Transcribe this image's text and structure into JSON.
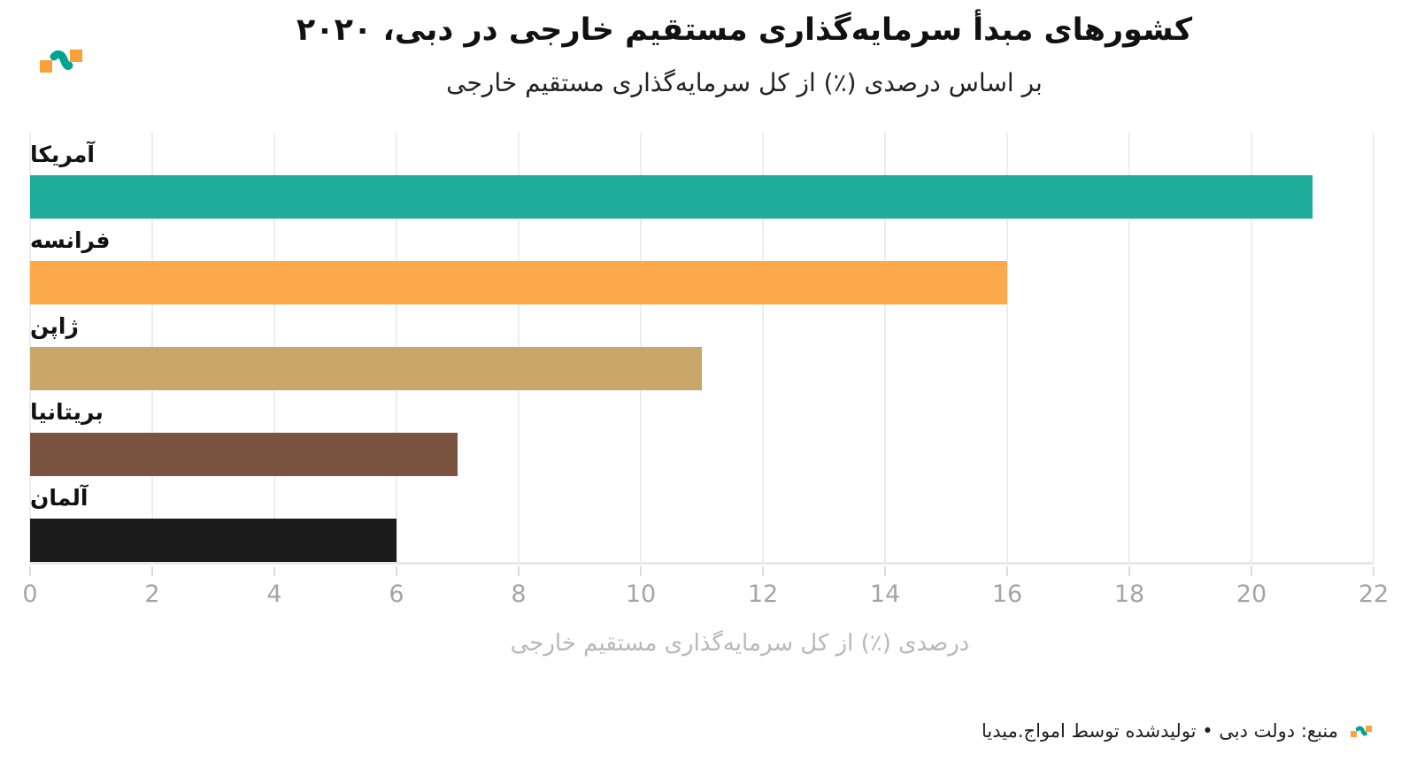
{
  "chart_data": {
    "type": "bar",
    "orientation": "horizontal",
    "title": "کشورهای مبدأ سرمایه‌گذاری مستقیم خارجی در دبی، ۲۰۲۰",
    "subtitle": "بر اساس درصدی (٪) از کل سرمایه‌گذاری مستقیم خارجی",
    "categories": [
      "آمریکا",
      "فرانسه",
      "ژاپن",
      "بریتانیا",
      "آلمان"
    ],
    "values": [
      21,
      16,
      11,
      7,
      6
    ],
    "bar_colors": [
      "#1ead9b",
      "#fca94c",
      "#c9a66a",
      "#7b5441",
      "#1c1c1c"
    ],
    "xlabel": "درصدی (٪) از کل سرمایه‌گذاری مستقیم خارجی",
    "xlim": [
      0,
      22
    ],
    "xticks": [
      0,
      2,
      4,
      6,
      8,
      10,
      12,
      14,
      16,
      18,
      20,
      22
    ],
    "grid": "vertical",
    "legend": "none"
  },
  "brand": {
    "logo_name": "amwaj-media-logo",
    "orange": "#f9a13c",
    "teal": "#00a491"
  },
  "footer": {
    "text": "منبع: دولت دبی • تولیدشده توسط امواج.میدیا"
  },
  "colors": {
    "gridline": "#ededed",
    "axis_line": "#e8e8e8",
    "tick_label": "#a5a5a5",
    "axis_label": "#b8b8b8",
    "title": "#111111"
  }
}
